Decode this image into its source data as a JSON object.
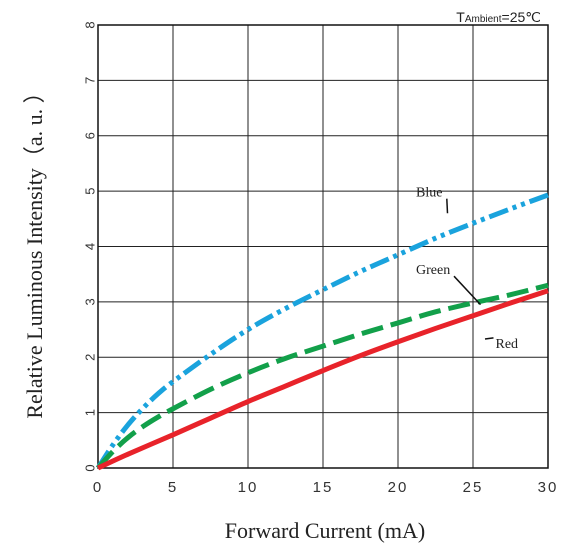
{
  "chart_data": {
    "type": "line",
    "condition": {
      "prefix": "T",
      "subscript": "Ambient",
      "suffix": "=25℃"
    },
    "xlabel": "Forward  Current (mA)",
    "ylabel": "Relative  Luminous  Intensity（a. u. ）",
    "xlim": [
      0,
      30
    ],
    "ylim": [
      0,
      8
    ],
    "xticks": [
      "0",
      "5",
      "10",
      "15",
      "20",
      "25",
      "30"
    ],
    "yticks": [
      "0",
      "1",
      "2",
      "3",
      "4",
      "5",
      "6",
      "7",
      "8"
    ],
    "grid": true,
    "series": [
      {
        "name": "Blue",
        "color": "#1aa3dd",
        "dash": "dash-dot-dot",
        "points": [
          [
            0,
            0
          ],
          [
            1,
            0.42
          ],
          [
            2,
            0.78
          ],
          [
            3,
            1.08
          ],
          [
            4,
            1.34
          ],
          [
            5,
            1.56
          ],
          [
            7.5,
            2.05
          ],
          [
            10,
            2.5
          ],
          [
            12.5,
            2.88
          ],
          [
            15,
            3.22
          ],
          [
            17.5,
            3.55
          ],
          [
            20,
            3.85
          ],
          [
            22.5,
            4.15
          ],
          [
            25,
            4.42
          ],
          [
            27.5,
            4.68
          ],
          [
            30,
            4.93
          ]
        ]
      },
      {
        "name": "Green",
        "color": "#12a04a",
        "dash": "dashed",
        "points": [
          [
            0,
            0
          ],
          [
            1,
            0.3
          ],
          [
            2,
            0.55
          ],
          [
            3,
            0.75
          ],
          [
            4,
            0.92
          ],
          [
            5,
            1.07
          ],
          [
            7.5,
            1.42
          ],
          [
            10,
            1.72
          ],
          [
            12.5,
            1.98
          ],
          [
            15,
            2.2
          ],
          [
            17.5,
            2.42
          ],
          [
            20,
            2.62
          ],
          [
            22.5,
            2.82
          ],
          [
            25,
            2.98
          ],
          [
            27.5,
            3.13
          ],
          [
            30,
            3.3
          ]
        ]
      },
      {
        "name": "Red",
        "color": "#e8232a",
        "dash": "solid",
        "points": [
          [
            0,
            0
          ],
          [
            2,
            0.25
          ],
          [
            5,
            0.6
          ],
          [
            7.5,
            0.9
          ],
          [
            10,
            1.2
          ],
          [
            12.5,
            1.48
          ],
          [
            15,
            1.76
          ],
          [
            17.5,
            2.03
          ],
          [
            20,
            2.28
          ],
          [
            22.5,
            2.52
          ],
          [
            25,
            2.75
          ],
          [
            27.5,
            2.98
          ],
          [
            30,
            3.2
          ]
        ]
      }
    ],
    "annotations": [
      {
        "series": "Blue",
        "text": "Blue",
        "label_at": [
          21.2,
          4.9
        ],
        "leader_to": [
          23.3,
          4.6
        ]
      },
      {
        "series": "Green",
        "text": "Green",
        "label_at": [
          21.2,
          3.5
        ],
        "leader_to": [
          25.5,
          2.95
        ]
      },
      {
        "series": "Red",
        "text": "Red",
        "label_at": [
          26.5,
          2.17
        ],
        "leader_to": [
          25.8,
          2.33
        ]
      }
    ]
  }
}
